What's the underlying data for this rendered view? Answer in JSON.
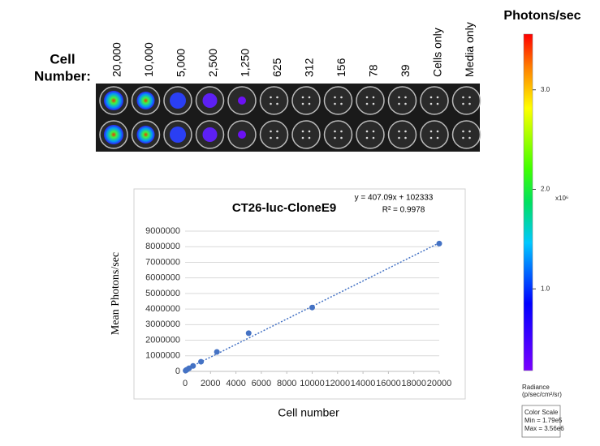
{
  "plate": {
    "row_label": [
      "Cell",
      "Number:"
    ],
    "columns": [
      "20,000",
      "10,000",
      "5,000",
      "2,500",
      "1,250",
      "625",
      "312",
      "156",
      "78",
      "39",
      "Cells only",
      "Media only"
    ]
  },
  "color_scale": {
    "title": "Photons/sec",
    "lim": [
      0.179,
      3.56
    ],
    "ticks": [
      {
        "value": 3,
        "label": "3.0"
      },
      {
        "value": 2,
        "label": "2.0"
      },
      {
        "value": 1,
        "label": "1.0"
      }
    ],
    "multiplier": "x10⁶",
    "unit_label": [
      "Radiance",
      "(p/sec/cm²/sr)"
    ],
    "box": [
      "Color Scale",
      "Min = 1.79e5",
      "Max = 3.56e6"
    ]
  },
  "chart_data": {
    "type": "scatter",
    "title": "CT26-luc-CloneE9",
    "xlabel": "Cell number",
    "ylabel": "Mean Photons/sec",
    "color": "#4472c4",
    "x": [
      20000,
      10000,
      5000,
      2500,
      1250,
      625,
      312,
      156,
      78,
      39
    ],
    "values": [
      8200000,
      4100000,
      2450000,
      1250000,
      620000,
      350000,
      200000,
      120000,
      80000,
      50000
    ],
    "xlim": [
      0,
      20000
    ],
    "ylim": [
      0,
      9000000
    ],
    "xticks": [
      0,
      2000,
      4000,
      6000,
      8000,
      10000,
      12000,
      14000,
      16000,
      18000,
      20000
    ],
    "yticks": [
      0,
      1000000,
      2000000,
      3000000,
      4000000,
      5000000,
      6000000,
      7000000,
      8000000,
      9000000
    ],
    "grid": true,
    "trendline": {
      "slope": 407.09,
      "intercept": 102333,
      "label": "y = 407.09x + 102333",
      "r2_label": "R² = 0.9978"
    }
  }
}
